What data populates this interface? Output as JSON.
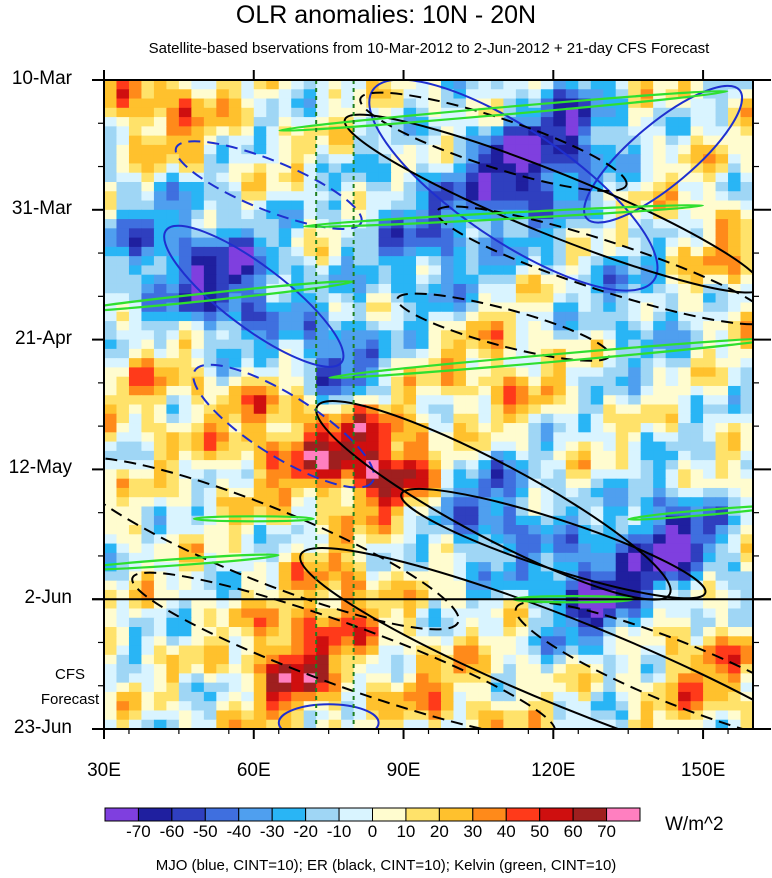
{
  "chart_data": {
    "type": "heatmap",
    "title": "OLR anomalies: 10N - 20N",
    "subtitle": "Satellite-based bservations from 10-Mar-2012 to 2-Jun-2012 + 21-day CFS Forecast",
    "x_axis": {
      "ticks": [
        {
          "value": 30,
          "label": "30E"
        },
        {
          "value": 60,
          "label": "60E"
        },
        {
          "value": 90,
          "label": "90E"
        },
        {
          "value": 120,
          "label": "120E"
        },
        {
          "value": 150,
          "label": "150E"
        }
      ],
      "range": [
        30,
        160
      ]
    },
    "y_axis": {
      "ticks": [
        {
          "day": 0,
          "label": "10-Mar"
        },
        {
          "day": 21,
          "label": "31-Mar"
        },
        {
          "day": 42,
          "label": "21-Apr"
        },
        {
          "day": 63,
          "label": "12-May"
        },
        {
          "day": 84,
          "label": "2-Jun"
        },
        {
          "day": 105,
          "label": "23-Jun"
        }
      ],
      "range_days": [
        0,
        105
      ],
      "observation_end_day": 84
    },
    "forecast_label": [
      "CFS",
      "Forecast"
    ],
    "reference_lines_lon": [
      72.5,
      80
    ],
    "colorbar": {
      "levels": [
        -70,
        -60,
        -50,
        -40,
        -30,
        -20,
        -10,
        0,
        10,
        20,
        30,
        40,
        50,
        60,
        70
      ],
      "labels": [
        "-70",
        "-60",
        "-50",
        "-40",
        "-30",
        "-20",
        "-10",
        "0",
        "10",
        "20",
        "30",
        "40",
        "50",
        "60",
        "70"
      ],
      "colors": [
        "#7f3fdf",
        "#1f1f9f",
        "#2f3fbf",
        "#3f6fdf",
        "#4f9fef",
        "#29b5f5",
        "#9fd6f5",
        "#d9f4ff",
        "#fffccf",
        "#ffe26a",
        "#ffc12d",
        "#ff8a1a",
        "#ff3a1a",
        "#cf0f0f",
        "#9f1f1f",
        "#ff7fc0"
      ],
      "units": "W/m^2"
    },
    "footnote": "MJO (blue, CINT=10); ER (black, CINT=10); Kelvin (green, CINT=10)",
    "features": [
      {
        "kind": "MJO",
        "sign": "positive",
        "lon": 60,
        "day": 35,
        "a": 22,
        "b": 5,
        "angle": 37
      },
      {
        "kind": "MJO",
        "sign": "negative",
        "lon": 63,
        "day": 17,
        "a": 20,
        "b": 4,
        "angle": 22
      },
      {
        "kind": "MJO",
        "sign": "negative",
        "lon": 66,
        "day": 56,
        "a": 21,
        "b": 5,
        "angle": 32
      },
      {
        "kind": "MJO",
        "sign": "positive",
        "lon": 112,
        "day": 17,
        "a": 34,
        "b": 9,
        "angle": 34
      },
      {
        "kind": "MJO",
        "sign": "positive",
        "lon": 142,
        "day": 12,
        "a": 20,
        "b": 5,
        "angle": -40
      },
      {
        "kind": "MJO",
        "sign": "positive",
        "lon": 75,
        "day": 104,
        "a": 10,
        "b": 3,
        "angle": 0
      },
      {
        "kind": "ER",
        "sign": "negative",
        "lon": 108,
        "day": 10,
        "a": 28,
        "b": 4,
        "angle": 18
      },
      {
        "kind": "ER",
        "sign": "positive",
        "lon": 120,
        "day": 20,
        "a": 45,
        "b": 5,
        "angle": 22
      },
      {
        "kind": "ER",
        "sign": "negative",
        "lon": 130,
        "day": 30,
        "a": 35,
        "b": 4,
        "angle": 18
      },
      {
        "kind": "ER",
        "sign": "negative",
        "lon": 110,
        "day": 40,
        "a": 22,
        "b": 3,
        "angle": 15
      },
      {
        "kind": "ER",
        "sign": "positive",
        "lon": 108,
        "day": 68,
        "a": 40,
        "b": 6,
        "angle": 28
      },
      {
        "kind": "ER",
        "sign": "negative",
        "lon": 62,
        "day": 75,
        "a": 42,
        "b": 6,
        "angle": 22
      },
      {
        "kind": "ER",
        "sign": "positive",
        "lon": 120,
        "day": 75,
        "a": 32,
        "b": 4,
        "angle": 18
      },
      {
        "kind": "ER",
        "sign": "negative",
        "lon": 78,
        "day": 93,
        "a": 45,
        "b": 5,
        "angle": 20
      },
      {
        "kind": "ER",
        "sign": "positive",
        "lon": 125,
        "day": 95,
        "a": 60,
        "b": 7,
        "angle": 22
      },
      {
        "kind": "ER",
        "sign": "negative",
        "lon": 145,
        "day": 96,
        "a": 35,
        "b": 5,
        "angle": 22
      },
      {
        "kind": "Kelvin",
        "sign": "positive",
        "lon": 110,
        "day": 5,
        "a": 45,
        "b": 0.6,
        "angle": -5
      },
      {
        "kind": "Kelvin",
        "sign": "positive",
        "lon": 110,
        "day": 22,
        "a": 40,
        "b": 0.5,
        "angle": -3
      },
      {
        "kind": "Kelvin",
        "sign": "positive",
        "lon": 52,
        "day": 35,
        "a": 28,
        "b": 0.6,
        "angle": -6
      },
      {
        "kind": "Kelvin",
        "sign": "positive",
        "lon": 120,
        "day": 45,
        "a": 45,
        "b": 0.6,
        "angle": -5
      },
      {
        "kind": "Kelvin",
        "sign": "positive",
        "lon": 60,
        "day": 71,
        "a": 12,
        "b": 0.4,
        "angle": 0
      },
      {
        "kind": "Kelvin",
        "sign": "positive",
        "lon": 150,
        "day": 70,
        "a": 15,
        "b": 0.4,
        "angle": -5
      },
      {
        "kind": "Kelvin",
        "sign": "positive",
        "lon": 45,
        "day": 78,
        "a": 20,
        "b": 0.5,
        "angle": -4
      },
      {
        "kind": "Kelvin",
        "sign": "positive",
        "lon": 124,
        "day": 84,
        "a": 12,
        "b": 0.5,
        "angle": 0
      }
    ],
    "blobs": [
      {
        "lon": 113,
        "day": 15,
        "v": -70,
        "r": 7
      },
      {
        "lon": 125,
        "day": 8,
        "v": -55,
        "r": 6
      },
      {
        "lon": 56,
        "day": 34,
        "v": -55,
        "r": 8
      },
      {
        "lon": 76,
        "day": 46,
        "v": -60,
        "r": 6
      },
      {
        "lon": 144,
        "day": 75,
        "v": -70,
        "r": 7
      },
      {
        "lon": 128,
        "day": 83,
        "v": -65,
        "r": 7
      },
      {
        "lon": 108,
        "day": 70,
        "v": -45,
        "r": 8
      },
      {
        "lon": 95,
        "day": 26,
        "v": -40,
        "r": 10
      },
      {
        "lon": 140,
        "day": 35,
        "v": -35,
        "r": 10
      },
      {
        "lon": 40,
        "day": 28,
        "v": -35,
        "r": 10
      },
      {
        "lon": 88,
        "day": 63,
        "v": 55,
        "r": 6
      },
      {
        "lon": 68,
        "day": 95,
        "v": 55,
        "r": 7
      },
      {
        "lon": 78,
        "day": 60,
        "v": 40,
        "r": 7
      },
      {
        "lon": 42,
        "day": 4,
        "v": 35,
        "r": 8
      },
      {
        "lon": 78,
        "day": 84,
        "v": 35,
        "r": 6
      },
      {
        "lon": 65,
        "day": 57,
        "v": 30,
        "r": 9
      },
      {
        "lon": 150,
        "day": 30,
        "v": 30,
        "r": 10
      },
      {
        "lon": 108,
        "day": 47,
        "v": 25,
        "r": 8
      },
      {
        "lon": 150,
        "day": 95,
        "v": 30,
        "r": 8
      },
      {
        "lon": 40,
        "day": 48,
        "v": 20,
        "r": 9
      },
      {
        "lon": 98,
        "day": 100,
        "v": 20,
        "r": 9
      }
    ]
  }
}
